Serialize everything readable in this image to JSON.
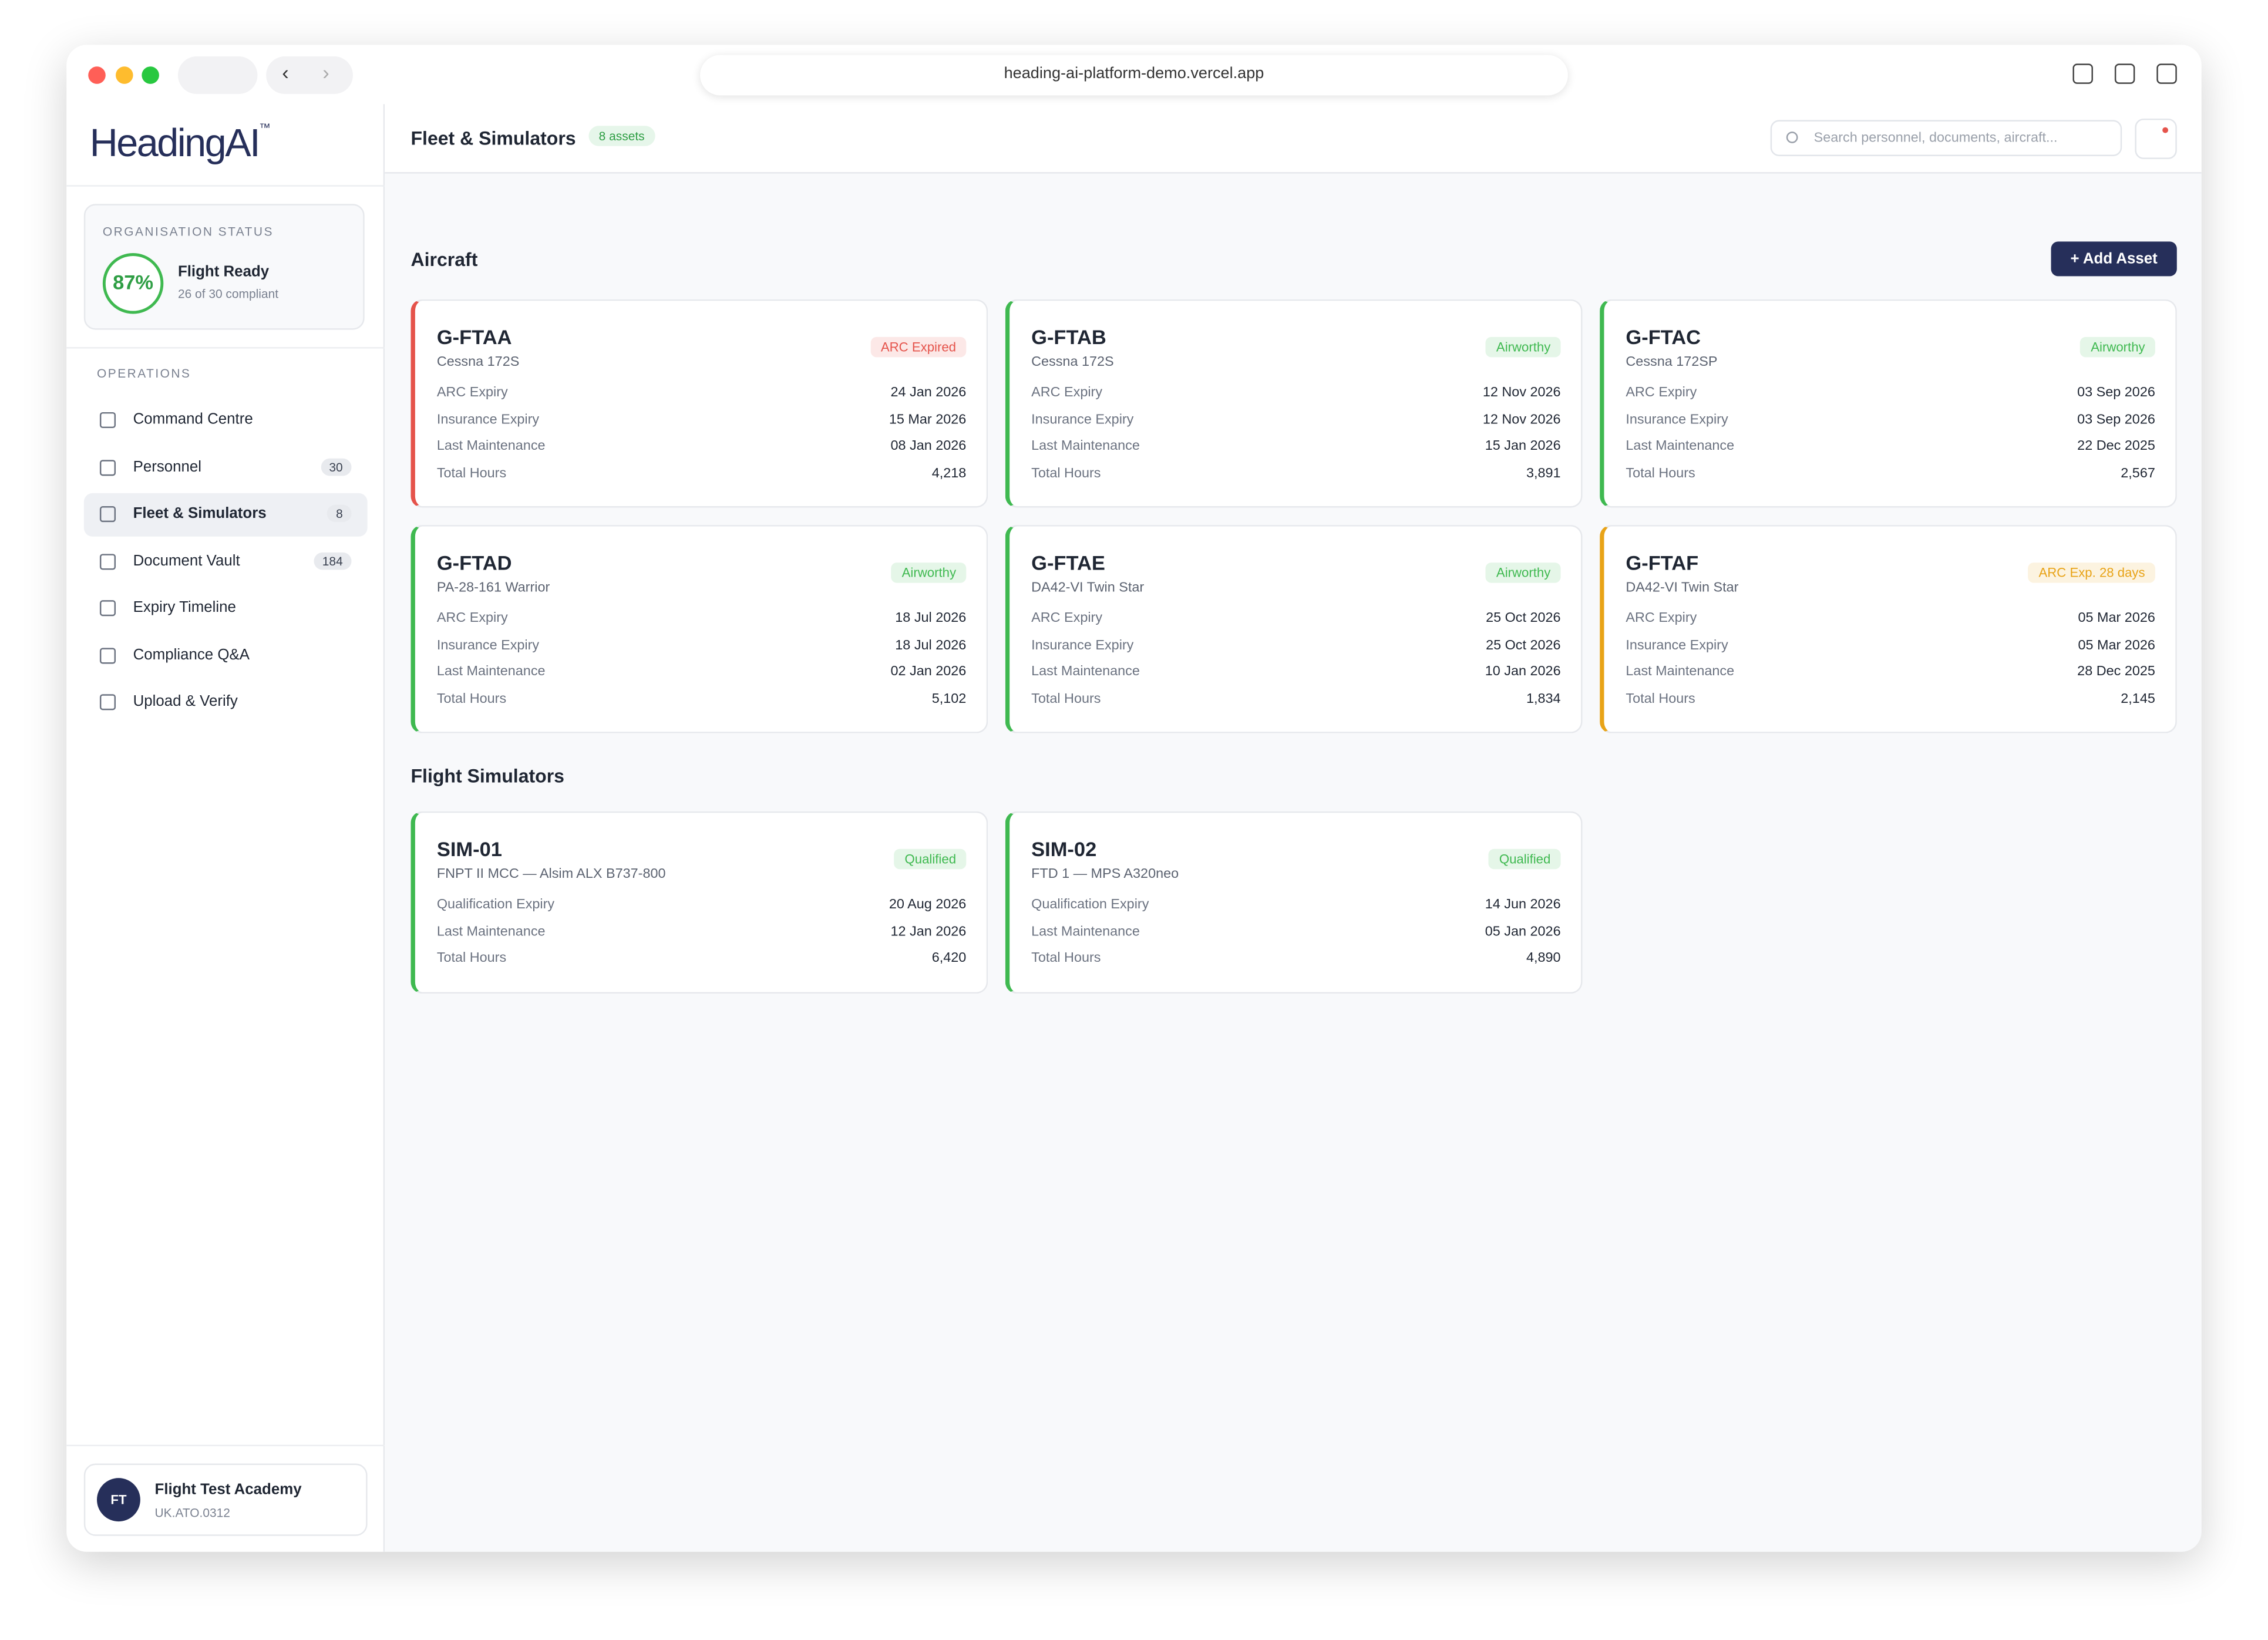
{
  "browser": {
    "url": "heading-ai-platform-demo.vercel.app"
  },
  "sidebar": {
    "logo": "HeadingAI",
    "logo_mark": "™",
    "org_status": {
      "label": "ORGANISATION STATUS",
      "percent": "87%",
      "title": "Flight Ready",
      "subtitle": "26 of 30 compliant"
    },
    "section": "OPERATIONS",
    "nav": [
      {
        "label": "Command Centre"
      },
      {
        "label": "Personnel",
        "badge": 30
      },
      {
        "label": "Fleet & Simulators",
        "badge": 8,
        "active": true
      },
      {
        "label": "Document Vault",
        "badge": 184
      },
      {
        "label": "Expiry Timeline"
      },
      {
        "label": "Compliance Q&A"
      },
      {
        "label": "Upload & Verify"
      }
    ],
    "user": {
      "initials": "FT",
      "name": "Flight Test Academy",
      "code": "UK.ATO.0312"
    }
  },
  "header": {
    "title": "Fleet & Simulators",
    "badge": "8 assets",
    "search_placeholder": "Search personnel, documents, aircraft..."
  },
  "aircraft": {
    "title": "Aircraft",
    "button": "+ Add Asset",
    "cards": [
      {
        "id": "G-FTAA",
        "model": "Cessna 172S",
        "status": "ARC Expired",
        "accent": "#e5534b",
        "rows": [
          [
            "ARC Expiry",
            "24 Jan 2026"
          ],
          [
            "Insurance Expiry",
            "15 Mar 2026"
          ],
          [
            "Last Maintenance",
            "08 Jan 2026"
          ],
          [
            "Total Hours",
            "4,218"
          ]
        ]
      },
      {
        "id": "G-FTAB",
        "model": "Cessna 172S",
        "status": "Airworthy",
        "accent": "#3fb950",
        "rows": [
          [
            "ARC Expiry",
            "12 Nov 2026"
          ],
          [
            "Insurance Expiry",
            "12 Nov 2026"
          ],
          [
            "Last Maintenance",
            "15 Jan 2026"
          ],
          [
            "Total Hours",
            "3,891"
          ]
        ]
      },
      {
        "id": "G-FTAC",
        "model": "Cessna 172SP",
        "status": "Airworthy",
        "accent": "#3fb950",
        "rows": [
          [
            "ARC Expiry",
            "03 Sep 2026"
          ],
          [
            "Insurance Expiry",
            "03 Sep 2026"
          ],
          [
            "Last Maintenance",
            "22 Dec 2025"
          ],
          [
            "Total Hours",
            "2,567"
          ]
        ]
      },
      {
        "id": "G-FTAD",
        "model": "PA-28-161 Warrior",
        "status": "Airworthy",
        "accent": "#3fb950",
        "rows": [
          [
            "ARC Expiry",
            "18 Jul 2026"
          ],
          [
            "Insurance Expiry",
            "18 Jul 2026"
          ],
          [
            "Last Maintenance",
            "02 Jan 2026"
          ],
          [
            "Total Hours",
            "5,102"
          ]
        ]
      },
      {
        "id": "G-FTAE",
        "model": "DA42-VI Twin Star",
        "status": "Airworthy",
        "accent": "#3fb950",
        "rows": [
          [
            "ARC Expiry",
            "25 Oct 2026"
          ],
          [
            "Insurance Expiry",
            "25 Oct 2026"
          ],
          [
            "Last Maintenance",
            "10 Jan 2026"
          ],
          [
            "Total Hours",
            "1,834"
          ]
        ]
      },
      {
        "id": "G-FTAF",
        "model": "DA42-VI Twin Star",
        "status": "ARC Exp. 28 days",
        "accent": "#e8a317",
        "rows": [
          [
            "ARC Expiry",
            "05 Mar 2026"
          ],
          [
            "Insurance Expiry",
            "05 Mar 2026"
          ],
          [
            "Last Maintenance",
            "28 Dec 2025"
          ],
          [
            "Total Hours",
            "2,145"
          ]
        ]
      }
    ]
  },
  "simulators": {
    "title": "Flight Simulators",
    "cards": [
      {
        "id": "SIM-01",
        "model": "FNPT II MCC — Alsim ALX B737-800",
        "status": "Qualified",
        "accent": "#3fb950",
        "rows": [
          [
            "Qualification Expiry",
            "20 Aug 2026"
          ],
          [
            "Last Maintenance",
            "12 Jan 2026"
          ],
          [
            "Total Hours",
            "6,420"
          ]
        ]
      },
      {
        "id": "SIM-02",
        "model": "FTD 1 — MPS A320neo",
        "status": "Qualified",
        "accent": "#3fb950",
        "rows": [
          [
            "Qualification Expiry",
            "14 Jun 2026"
          ],
          [
            "Last Maintenance",
            "05 Jan 2026"
          ],
          [
            "Total Hours",
            "4,890"
          ]
        ]
      }
    ]
  }
}
